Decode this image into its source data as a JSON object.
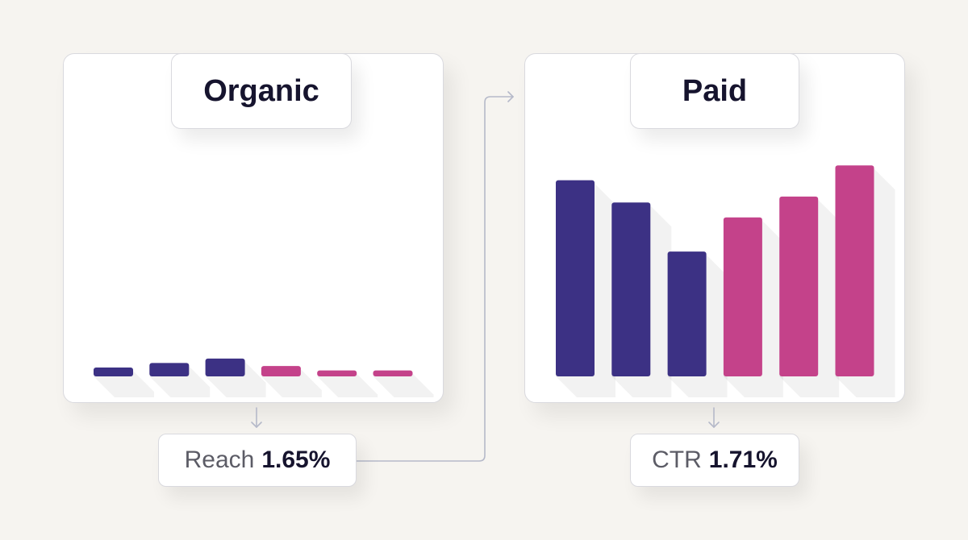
{
  "colors": {
    "navy": "#3c3184",
    "magenta": "#c4428a",
    "connector": "#b5b9c9"
  },
  "chart_data": [
    {
      "type": "bar",
      "title": "Organic",
      "values": [
        6,
        9,
        12,
        7,
        4,
        4
      ],
      "colors": [
        "navy",
        "navy",
        "navy",
        "magenta",
        "magenta",
        "magenta"
      ],
      "ylim": [
        0,
        160
      ],
      "metric": {
        "label": "Reach",
        "value": "1.65%"
      }
    },
    {
      "type": "bar",
      "title": "Paid",
      "values": [
        132,
        117,
        84,
        107,
        121,
        142
      ],
      "colors": [
        "navy",
        "navy",
        "navy",
        "magenta",
        "magenta",
        "magenta"
      ],
      "ylim": [
        0,
        160
      ],
      "metric": {
        "label": "CTR",
        "value": "1.71%"
      }
    }
  ]
}
